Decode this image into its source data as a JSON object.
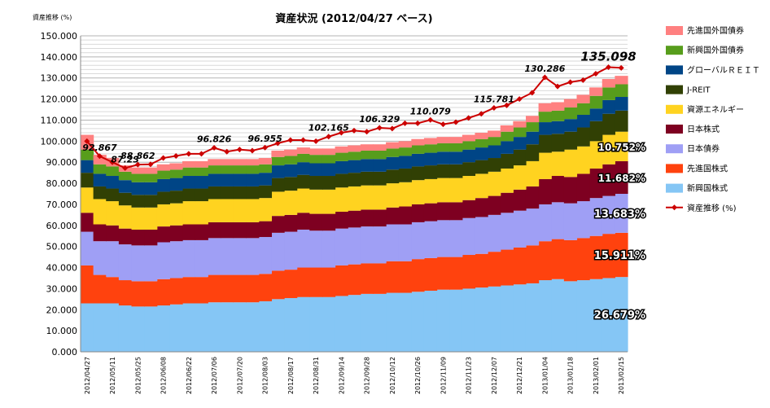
{
  "chart_data": {
    "type": "area",
    "stacked": true,
    "title": "資産状況 (2012/04/27 ベース)",
    "ylabel": "資産推移 (%)",
    "ylim": [
      0,
      150
    ],
    "ytick_step": 10,
    "ytick_format": "0.000",
    "grid": "horizontal",
    "legend_position": "right",
    "x": [
      "2012/04/27",
      "2012/05/04",
      "2012/05/11",
      "2012/05/18",
      "2012/05/25",
      "2012/06/01",
      "2012/06/08",
      "2012/06/15",
      "2012/06/22",
      "2012/06/29",
      "2012/07/06",
      "2012/07/13",
      "2012/07/20",
      "2012/07/27",
      "2012/08/03",
      "2012/08/10",
      "2012/08/17",
      "2012/08/24",
      "2012/08/31",
      "2012/09/07",
      "2012/09/14",
      "2012/09/21",
      "2012/09/28",
      "2012/10/05",
      "2012/10/12",
      "2012/10/19",
      "2012/10/26",
      "2012/11/02",
      "2012/11/09",
      "2012/11/16",
      "2012/11/23",
      "2012/11/30",
      "2012/12/07",
      "2012/12/14",
      "2012/12/21",
      "2012/12/28",
      "2013/01/04",
      "2013/01/11",
      "2013/01/18",
      "2013/01/25",
      "2013/02/01",
      "2013/02/08",
      "2013/02/15"
    ],
    "x_tick_labels": [
      "2012/04/27",
      "2012/05/11",
      "2012/05/25",
      "2012/06/08",
      "2012/06/22",
      "2012/07/06",
      "2012/07/20",
      "2012/08/03",
      "2012/08/17",
      "2012/08/31",
      "2012/09/14",
      "2012/09/28",
      "2012/10/12",
      "2012/10/26",
      "2012/11/09",
      "2012/11/23",
      "2012/12/07",
      "2012/12/21",
      "2013/01/04",
      "2013/01/18",
      "2013/02/01",
      "2013/02/15"
    ],
    "series": [
      {
        "name": "新興国株式",
        "color": "#85c6f5",
        "values": [
          23,
          23,
          23,
          22,
          21.5,
          21.5,
          22,
          22.5,
          23,
          23,
          23.5,
          23.5,
          23.5,
          23.5,
          24,
          25,
          25.5,
          26,
          26,
          26,
          26.5,
          27,
          27.5,
          27.5,
          28,
          28,
          28.5,
          29,
          29.5,
          29.5,
          30,
          30.5,
          31,
          31.5,
          32,
          32.5,
          34,
          34.5,
          33.5,
          34,
          34.5,
          35,
          35.5
        ]
      },
      {
        "name": "先進国株式",
        "color": "#ff420e",
        "values": [
          18,
          13.5,
          12.5,
          12,
          12,
          12,
          12.5,
          12.5,
          12.5,
          12.5,
          13,
          13,
          13,
          13,
          13,
          13.5,
          13.5,
          14,
          14,
          14,
          14.5,
          14.5,
          14.5,
          14.5,
          15,
          15,
          15.5,
          15.5,
          15.5,
          15.5,
          16,
          16,
          16.5,
          17,
          17.5,
          18,
          18.5,
          19,
          19.5,
          20,
          20.5,
          21,
          21
        ]
      },
      {
        "name": "日本債券",
        "color": "#9f9ff5",
        "values": [
          16,
          16,
          17,
          17,
          17,
          17,
          17.5,
          17.5,
          17.5,
          17.5,
          17.5,
          17.5,
          17.5,
          17.5,
          17.5,
          18,
          18,
          18,
          17.5,
          17.5,
          17.5,
          17.5,
          17.5,
          17.5,
          17.5,
          17.5,
          17.5,
          17.5,
          17.5,
          17.5,
          17.5,
          17.5,
          17.5,
          17.5,
          17.5,
          17.5,
          17.5,
          17.5,
          17.5,
          17.5,
          18,
          18,
          18.5
        ]
      },
      {
        "name": "日本株式",
        "color": "#7e0021",
        "values": [
          9,
          8,
          7.5,
          7.5,
          7.5,
          7.5,
          7.5,
          7.5,
          7.5,
          7.5,
          7.5,
          7.5,
          7.5,
          7.5,
          7.5,
          8,
          8,
          8,
          8,
          8,
          8,
          8,
          8,
          8,
          8,
          8.5,
          8.5,
          8.5,
          8.5,
          8.5,
          8.5,
          9,
          9,
          9.5,
          10,
          10.5,
          12,
          12.5,
          12.5,
          13,
          14,
          15,
          15.5
        ]
      },
      {
        "name": "資源エネルギー",
        "color": "#ffd320",
        "values": [
          12,
          12,
          11.5,
          11,
          10.5,
          10.5,
          10.5,
          10.5,
          11,
          11,
          11,
          11,
          11,
          11,
          11,
          11.5,
          11.5,
          11.5,
          11.5,
          11.5,
          11.5,
          11.5,
          11.5,
          11.5,
          11.5,
          11.5,
          11.5,
          11.5,
          11.5,
          11.5,
          11.5,
          11.5,
          11.5,
          11.5,
          11.5,
          12,
          12.5,
          11.5,
          13,
          13,
          13,
          14,
          14
        ]
      },
      {
        "name": "J-REIT",
        "color": "#314004",
        "values": [
          7,
          6,
          6,
          6,
          6,
          6,
          6,
          6,
          6,
          6,
          6,
          6,
          6,
          6,
          6,
          6.5,
          6.5,
          6.5,
          6.5,
          6.5,
          6.5,
          6.5,
          6.5,
          6.5,
          6.5,
          6.5,
          6.5,
          6.5,
          6.5,
          6.5,
          6.5,
          6.5,
          6.5,
          7,
          7.5,
          8,
          8.5,
          8.5,
          8.5,
          9,
          9.5,
          10,
          10
        ]
      },
      {
        "name": "グローバルＲＥＩＴ",
        "color": "#004586",
        "values": [
          6,
          6,
          6,
          6,
          6,
          6,
          6,
          6,
          6,
          6,
          6,
          6,
          6,
          6,
          6,
          6,
          6,
          6,
          6,
          6,
          6,
          6,
          6,
          6,
          6,
          6,
          6,
          6,
          6,
          6,
          6,
          6,
          6,
          6,
          6,
          6,
          6,
          6,
          6,
          6,
          6,
          6.5,
          6.5
        ]
      },
      {
        "name": "新興国外国債券",
        "color": "#579d1c",
        "values": [
          5,
          4.5,
          4.5,
          4,
          4,
          4,
          4,
          4,
          4,
          4,
          4,
          4,
          4,
          4,
          4,
          4,
          4,
          4,
          4,
          4,
          4,
          4,
          4,
          4,
          4,
          4,
          4,
          4,
          4,
          4,
          4,
          4,
          4,
          4.5,
          4.5,
          4.5,
          5,
          5,
          5.5,
          5.5,
          6,
          6,
          6
        ]
      },
      {
        "name": "先進国外国債券",
        "color": "#ff8080",
        "values": [
          7,
          4.5,
          4,
          3,
          3,
          3,
          3,
          3,
          3,
          3,
          3,
          3,
          3,
          3,
          3,
          3,
          3,
          3,
          3,
          3,
          3,
          3,
          3,
          3,
          3,
          3,
          3,
          3,
          3,
          3,
          3,
          3,
          3,
          3,
          3,
          3,
          4,
          4,
          4,
          4,
          4,
          4,
          4
        ]
      }
    ],
    "line_series": {
      "name": "資産推移 (%)",
      "color": "#cc0000",
      "values": [
        100,
        92.867,
        90,
        87.23,
        88.862,
        89,
        92,
        93,
        94,
        94,
        96.826,
        95,
        96,
        95.5,
        96.955,
        99,
        100.5,
        100.5,
        100,
        102.165,
        104,
        105,
        104.5,
        106.329,
        106,
        108.5,
        108.5,
        110.079,
        108,
        109,
        111,
        113,
        115.781,
        117,
        120,
        123,
        130.286,
        126,
        128,
        129,
        132,
        135.098,
        134.8
      ]
    },
    "annotations": [
      {
        "x_index": 1,
        "text": "92.867"
      },
      {
        "x_index": 3,
        "text": "87.23"
      },
      {
        "x_index": 4,
        "text": "88.862"
      },
      {
        "x_index": 10,
        "text": "96.826"
      },
      {
        "x_index": 14,
        "text": "96.955"
      },
      {
        "x_index": 19,
        "text": "102.165"
      },
      {
        "x_index": 23,
        "text": "106.329"
      },
      {
        "x_index": 27,
        "text": "110.079"
      },
      {
        "x_index": 32,
        "text": "115.781"
      },
      {
        "x_index": 36,
        "text": "130.286"
      },
      {
        "x_index": 41,
        "text": "135.098",
        "emphasis": true
      }
    ],
    "share_labels": [
      {
        "series": "新興国株式",
        "text": "26.679%"
      },
      {
        "series": "先進国株式",
        "text": "15.911%"
      },
      {
        "series": "日本債券",
        "text": "13.683%"
      },
      {
        "series": "日本株式",
        "text": "11.682%"
      },
      {
        "series": "資源エネルギー",
        "text": "10.752%"
      }
    ],
    "legend_order": [
      "先進国外国債券",
      "新興国外国債券",
      "グローバルＲＥＩＴ",
      "J-REIT",
      "資源エネルギー",
      "日本株式",
      "日本債券",
      "先進国株式",
      "新興国株式"
    ]
  }
}
